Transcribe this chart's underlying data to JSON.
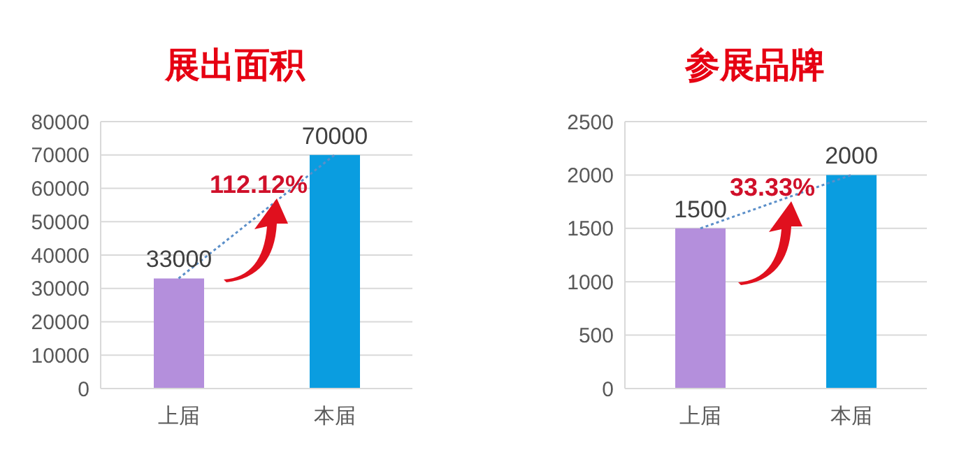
{
  "chart_data": [
    {
      "type": "bar",
      "title": "展出面积",
      "categories": [
        "上届",
        "本届"
      ],
      "series": [
        {
          "colors": [
            "#b48fdc",
            "#0a9de0"
          ],
          "values": [
            33000,
            70000
          ],
          "value_labels": [
            "33000",
            "70000"
          ]
        },
        {
          "type": "line",
          "color": "#5b8fc9",
          "line_style": "dotted",
          "marker": "none",
          "values": [
            33000,
            70000
          ]
        }
      ],
      "ylim": [
        0,
        80000
      ],
      "yticks": [
        0,
        10000,
        20000,
        30000,
        40000,
        50000,
        60000,
        70000,
        80000
      ],
      "grid": "y",
      "annotations": [
        "112.12%"
      ]
    },
    {
      "type": "bar",
      "title": "参展品牌",
      "categories": [
        "上届",
        "本届"
      ],
      "series": [
        {
          "colors": [
            "#b48fdc",
            "#0a9de0"
          ],
          "values": [
            1500,
            2000
          ],
          "value_labels": [
            "1500",
            "2000"
          ]
        },
        {
          "type": "line",
          "color": "#5b8fc9",
          "line_style": "dotted",
          "marker": "none",
          "values": [
            1500,
            2000
          ]
        }
      ],
      "ylim": [
        0,
        2500
      ],
      "yticks": [
        0,
        500,
        1000,
        1500,
        2000,
        2500
      ],
      "grid": "y",
      "annotations": [
        "33.33%"
      ]
    }
  ]
}
